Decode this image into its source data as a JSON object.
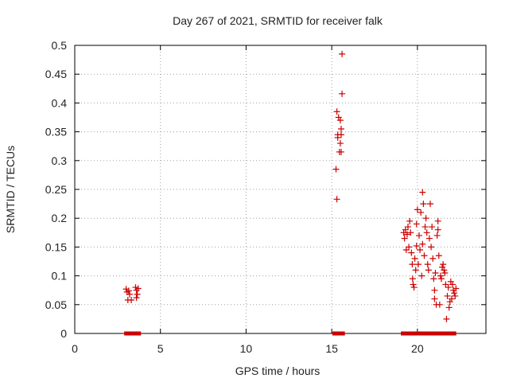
{
  "chart_data": {
    "type": "scatter",
    "title": "Day 267 of 2021, SRMTID for receiver falk",
    "xlabel": "GPS time / hours",
    "ylabel": "SRMTID / TECUs",
    "xlim": [
      0,
      24
    ],
    "ylim": [
      0,
      0.5
    ],
    "x_ticks": [
      0,
      5,
      10,
      15,
      20
    ],
    "x_tick_labels": [
      "0",
      "5",
      "10",
      "15",
      "20"
    ],
    "y_ticks": [
      0,
      0.05,
      0.1,
      0.15,
      0.2,
      0.25,
      0.3,
      0.35,
      0.4,
      0.45,
      0.5
    ],
    "y_tick_labels": [
      "0",
      "0.05",
      "0.1",
      "0.15",
      "0.2",
      "0.25",
      "0.3",
      "0.35",
      "0.4",
      "0.45",
      "0.5"
    ],
    "grid": true,
    "legend": "none",
    "marker_color": "#cc0000",
    "series": [
      {
        "marker": "plus",
        "points": [
          {
            "x": 3.0,
            "y": 0.077
          },
          {
            "x": 3.05,
            "y": 0.072
          },
          {
            "x": 3.1,
            "y": 0.058
          },
          {
            "x": 3.15,
            "y": 0.074
          },
          {
            "x": 3.2,
            "y": 0.068
          },
          {
            "x": 3.3,
            "y": 0.058
          },
          {
            "x": 3.55,
            "y": 0.08
          },
          {
            "x": 3.6,
            "y": 0.075
          },
          {
            "x": 3.65,
            "y": 0.068
          },
          {
            "x": 3.6,
            "y": 0.062
          },
          {
            "x": 3.7,
            "y": 0.078
          },
          {
            "x": 15.25,
            "y": 0.285
          },
          {
            "x": 15.3,
            "y": 0.233
          },
          {
            "x": 15.3,
            "y": 0.385
          },
          {
            "x": 15.35,
            "y": 0.345
          },
          {
            "x": 15.35,
            "y": 0.34
          },
          {
            "x": 15.4,
            "y": 0.375
          },
          {
            "x": 15.45,
            "y": 0.315
          },
          {
            "x": 15.5,
            "y": 0.33
          },
          {
            "x": 15.5,
            "y": 0.37
          },
          {
            "x": 15.55,
            "y": 0.355
          },
          {
            "x": 15.55,
            "y": 0.315
          },
          {
            "x": 15.6,
            "y": 0.485
          },
          {
            "x": 15.6,
            "y": 0.416
          },
          {
            "x": 15.55,
            "y": 0.345
          },
          {
            "x": 19.2,
            "y": 0.175
          },
          {
            "x": 19.25,
            "y": 0.165
          },
          {
            "x": 19.3,
            "y": 0.18
          },
          {
            "x": 19.35,
            "y": 0.145
          },
          {
            "x": 19.4,
            "y": 0.172
          },
          {
            "x": 19.45,
            "y": 0.185
          },
          {
            "x": 19.5,
            "y": 0.15
          },
          {
            "x": 19.55,
            "y": 0.195
          },
          {
            "x": 19.6,
            "y": 0.175
          },
          {
            "x": 19.65,
            "y": 0.14
          },
          {
            "x": 19.7,
            "y": 0.12
          },
          {
            "x": 19.72,
            "y": 0.095
          },
          {
            "x": 19.75,
            "y": 0.085
          },
          {
            "x": 19.8,
            "y": 0.08
          },
          {
            "x": 19.85,
            "y": 0.13
          },
          {
            "x": 19.9,
            "y": 0.11
          },
          {
            "x": 19.95,
            "y": 0.19
          },
          {
            "x": 19.95,
            "y": 0.152
          },
          {
            "x": 20.0,
            "y": 0.215
          },
          {
            "x": 20.05,
            "y": 0.12
          },
          {
            "x": 20.1,
            "y": 0.17
          },
          {
            "x": 20.15,
            "y": 0.145
          },
          {
            "x": 20.2,
            "y": 0.21
          },
          {
            "x": 20.25,
            "y": 0.1
          },
          {
            "x": 20.3,
            "y": 0.245
          },
          {
            "x": 20.3,
            "y": 0.155
          },
          {
            "x": 20.35,
            "y": 0.225
          },
          {
            "x": 20.4,
            "y": 0.135
          },
          {
            "x": 20.45,
            "y": 0.185
          },
          {
            "x": 20.5,
            "y": 0.2
          },
          {
            "x": 20.55,
            "y": 0.175
          },
          {
            "x": 20.6,
            "y": 0.12
          },
          {
            "x": 20.65,
            "y": 0.11
          },
          {
            "x": 20.7,
            "y": 0.165
          },
          {
            "x": 20.75,
            "y": 0.225
          },
          {
            "x": 20.8,
            "y": 0.15
          },
          {
            "x": 20.85,
            "y": 0.185
          },
          {
            "x": 20.9,
            "y": 0.13
          },
          {
            "x": 20.95,
            "y": 0.095
          },
          {
            "x": 21.0,
            "y": 0.075
          },
          {
            "x": 21.0,
            "y": 0.06
          },
          {
            "x": 21.05,
            "y": 0.105
          },
          {
            "x": 21.1,
            "y": 0.05
          },
          {
            "x": 21.15,
            "y": 0.17
          },
          {
            "x": 21.2,
            "y": 0.195
          },
          {
            "x": 21.2,
            "y": 0.18
          },
          {
            "x": 21.25,
            "y": 0.135
          },
          {
            "x": 21.3,
            "y": 0.05
          },
          {
            "x": 21.35,
            "y": 0.1
          },
          {
            "x": 21.4,
            "y": 0.095
          },
          {
            "x": 21.45,
            "y": 0.115
          },
          {
            "x": 21.5,
            "y": 0.12
          },
          {
            "x": 21.55,
            "y": 0.11
          },
          {
            "x": 21.6,
            "y": 0.105
          },
          {
            "x": 21.65,
            "y": 0.085
          },
          {
            "x": 21.7,
            "y": 0.025
          },
          {
            "x": 21.75,
            "y": 0.065
          },
          {
            "x": 21.8,
            "y": 0.08
          },
          {
            "x": 21.85,
            "y": 0.045
          },
          {
            "x": 21.9,
            "y": 0.055
          },
          {
            "x": 21.95,
            "y": 0.09
          },
          {
            "x": 22.0,
            "y": 0.06
          },
          {
            "x": 22.05,
            "y": 0.085
          },
          {
            "x": 22.1,
            "y": 0.075
          },
          {
            "x": 22.15,
            "y": 0.07
          },
          {
            "x": 22.2,
            "y": 0.065
          },
          {
            "x": 22.25,
            "y": 0.078
          }
        ]
      },
      {
        "marker": "square",
        "points": [
          {
            "x": 3.0,
            "y": 0
          },
          {
            "x": 3.15,
            "y": 0
          },
          {
            "x": 3.3,
            "y": 0
          },
          {
            "x": 3.45,
            "y": 0
          },
          {
            "x": 3.6,
            "y": 0
          },
          {
            "x": 3.75,
            "y": 0
          },
          {
            "x": 15.15,
            "y": 0
          },
          {
            "x": 15.3,
            "y": 0
          },
          {
            "x": 15.45,
            "y": 0
          },
          {
            "x": 15.65,
            "y": 0
          },
          {
            "x": 19.15,
            "y": 0
          },
          {
            "x": 19.3,
            "y": 0
          },
          {
            "x": 19.45,
            "y": 0
          },
          {
            "x": 19.6,
            "y": 0
          },
          {
            "x": 19.75,
            "y": 0
          },
          {
            "x": 19.9,
            "y": 0
          },
          {
            "x": 20.05,
            "y": 0
          },
          {
            "x": 20.2,
            "y": 0
          },
          {
            "x": 20.35,
            "y": 0
          },
          {
            "x": 20.5,
            "y": 0
          },
          {
            "x": 20.65,
            "y": 0
          },
          {
            "x": 20.8,
            "y": 0
          },
          {
            "x": 20.95,
            "y": 0
          },
          {
            "x": 21.1,
            "y": 0
          },
          {
            "x": 21.25,
            "y": 0
          },
          {
            "x": 21.4,
            "y": 0
          },
          {
            "x": 21.55,
            "y": 0
          },
          {
            "x": 21.7,
            "y": 0
          },
          {
            "x": 21.85,
            "y": 0
          },
          {
            "x": 22.0,
            "y": 0
          },
          {
            "x": 22.15,
            "y": 0
          }
        ]
      }
    ]
  }
}
